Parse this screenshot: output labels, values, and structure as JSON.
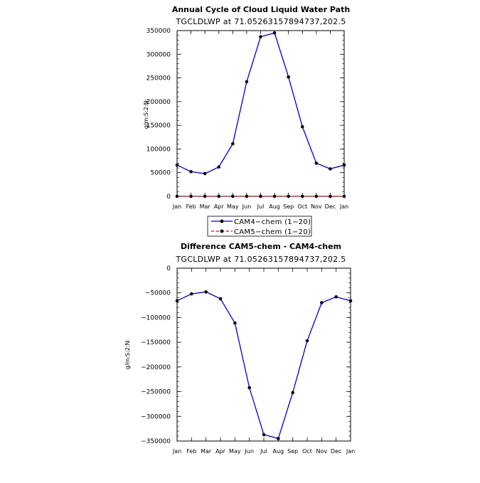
{
  "colors": {
    "cam4": "#0000cc",
    "cam5": "#dd0000",
    "marker": "#000000"
  },
  "chart_data": [
    {
      "type": "line",
      "title": "Annual Cycle of Cloud Liquid Water Path",
      "subtitle": "TGCLDLWP  at  71.05263157894737,202.5",
      "ylabel": "g/m:S:2:N:",
      "xlabel": "",
      "categories": [
        "Jan",
        "Feb",
        "Mar",
        "Apr",
        "May",
        "Jun",
        "Jul",
        "Aug",
        "Sep",
        "Oct",
        "Nov",
        "Dec",
        "Jan"
      ],
      "ylim": [
        0,
        350000
      ],
      "yticks": [
        0,
        50000,
        100000,
        150000,
        200000,
        250000,
        300000,
        350000
      ],
      "ytick_labels": [
        "0",
        "50000",
        "100000",
        "150000",
        "200000",
        "250000",
        "300000",
        "350000"
      ],
      "grid": false,
      "series": [
        {
          "name": "CAM4−chem (1−20)",
          "color_key": "cam4",
          "style": "solid",
          "values": [
            66000,
            52000,
            48000,
            62000,
            111000,
            242000,
            337000,
            345000,
            252000,
            147000,
            70000,
            58000,
            66000
          ]
        },
        {
          "name": "CAM5−chem (1−20)",
          "color_key": "cam5",
          "style": "dashed",
          "values": [
            0,
            0,
            0,
            0,
            0,
            0,
            0,
            0,
            0,
            0,
            0,
            0,
            0
          ]
        }
      ],
      "legend": "below"
    },
    {
      "type": "line",
      "title": "Difference CAM5-chem - CAM4-chem",
      "subtitle": "TGCLDLWP  at  71.05263157894737,202.5",
      "ylabel": "g/m:S:2:N:",
      "xlabel": "",
      "categories": [
        "Jan",
        "Feb",
        "Mar",
        "Apr",
        "May",
        "Jun",
        "Jul",
        "Aug",
        "Sep",
        "Oct",
        "Nov",
        "Dec",
        "Jan"
      ],
      "ylim": [
        -350000,
        0
      ],
      "yticks": [
        0,
        -50000,
        -100000,
        -150000,
        -200000,
        -250000,
        -300000,
        -350000
      ],
      "ytick_labels": [
        "0",
        "−50000",
        "−100000",
        "−150000",
        "−200000",
        "−250000",
        "−300000",
        "−350000"
      ],
      "grid": false,
      "series": [
        {
          "name": "",
          "color_key": "cam4",
          "style": "solid",
          "values": [
            -66000,
            -52000,
            -48000,
            -62000,
            -111000,
            -242000,
            -337000,
            -345000,
            -252000,
            -147000,
            -70000,
            -58000,
            -66000
          ]
        }
      ]
    }
  ]
}
